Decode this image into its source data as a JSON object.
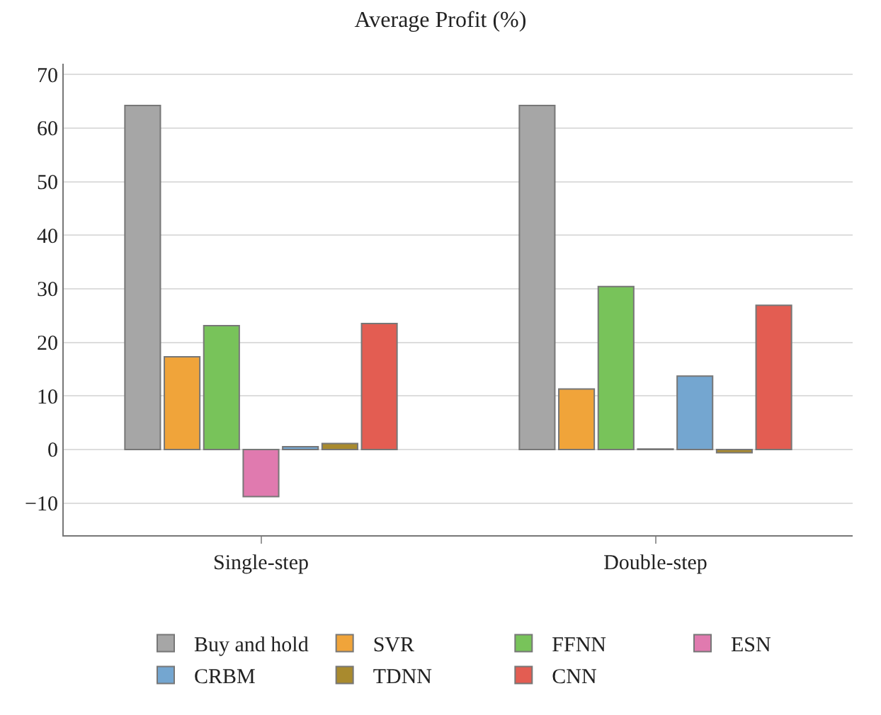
{
  "chart_data": {
    "type": "bar",
    "title": "Average Profit (%)",
    "categories": [
      "Single-step",
      "Double-step"
    ],
    "series": [
      {
        "name": "Buy and hold",
        "color": "#a6a6a6",
        "values": [
          64.2,
          64.2
        ]
      },
      {
        "name": "SVR",
        "color": "#f0a43a",
        "values": [
          17.3,
          11.3
        ]
      },
      {
        "name": "FFNN",
        "color": "#78c35a",
        "values": [
          23.1,
          30.4
        ]
      },
      {
        "name": "ESN",
        "color": "#e07aaf",
        "values": [
          -8.8,
          0.1
        ]
      },
      {
        "name": "CRBM",
        "color": "#74a6d0",
        "values": [
          0.5,
          13.7
        ]
      },
      {
        "name": "TDNN",
        "color": "#a98a2e",
        "values": [
          1.1,
          -0.6
        ]
      },
      {
        "name": "CNN",
        "color": "#e35d52",
        "values": [
          23.5,
          26.9
        ]
      }
    ],
    "ylim": [
      -16,
      72
    ],
    "yticks": [
      -10,
      0,
      10,
      20,
      30,
      40,
      50,
      60,
      70
    ],
    "grid": "y",
    "legend": "bottom"
  }
}
